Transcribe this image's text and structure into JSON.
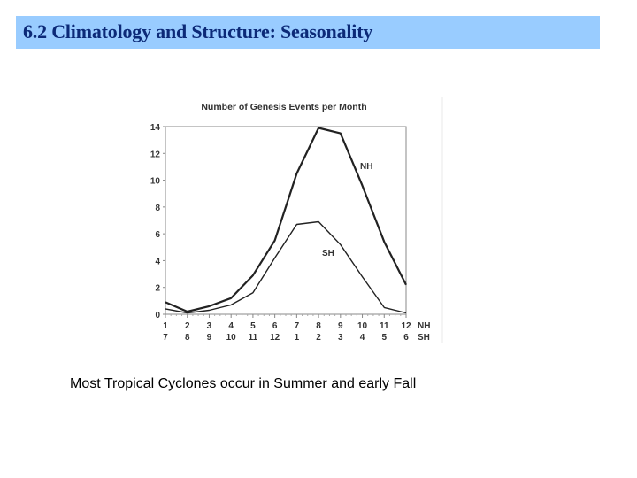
{
  "slide": {
    "title": "6.2 Climatology and Structure: Seasonality",
    "caption": "Most Tropical Cyclones occur in Summer and early Fall"
  },
  "colors": {
    "title_bar_bg": "#99ccff",
    "title_text": "#0c2a78",
    "frame": "#888888",
    "nh_line": "#222222",
    "sh_line": "#222222"
  },
  "chart_data": {
    "type": "line",
    "title": "Number of Genesis Events per Month",
    "xlabel": "",
    "ylabel": "",
    "x": [
      1,
      2,
      3,
      4,
      5,
      6,
      7,
      8,
      9,
      10,
      11,
      12
    ],
    "x_tick_labels_nh": [
      "1",
      "2",
      "3",
      "4",
      "5",
      "6",
      "7",
      "8",
      "9",
      "10",
      "11",
      "12"
    ],
    "x_tick_labels_sh": [
      "7",
      "8",
      "9",
      "10",
      "11",
      "12",
      "1",
      "2",
      "3",
      "4",
      "5",
      "6"
    ],
    "x_axis_row_labels": [
      "NH",
      "SH"
    ],
    "y_ticks": [
      0,
      2,
      4,
      6,
      8,
      10,
      12,
      14
    ],
    "ylim": [
      0,
      14
    ],
    "grid": false,
    "legend": "inline labels",
    "series": [
      {
        "name": "NH",
        "label": "NH",
        "values": [
          0.9,
          0.2,
          0.6,
          1.2,
          2.9,
          5.5,
          10.5,
          13.9,
          13.5,
          9.6,
          5.4,
          2.2
        ]
      },
      {
        "name": "SH",
        "label": "SH",
        "values": [
          0.4,
          0.1,
          0.3,
          0.7,
          1.6,
          4.2,
          6.7,
          6.9,
          5.2,
          2.8,
          0.5,
          0.1
        ]
      }
    ]
  }
}
